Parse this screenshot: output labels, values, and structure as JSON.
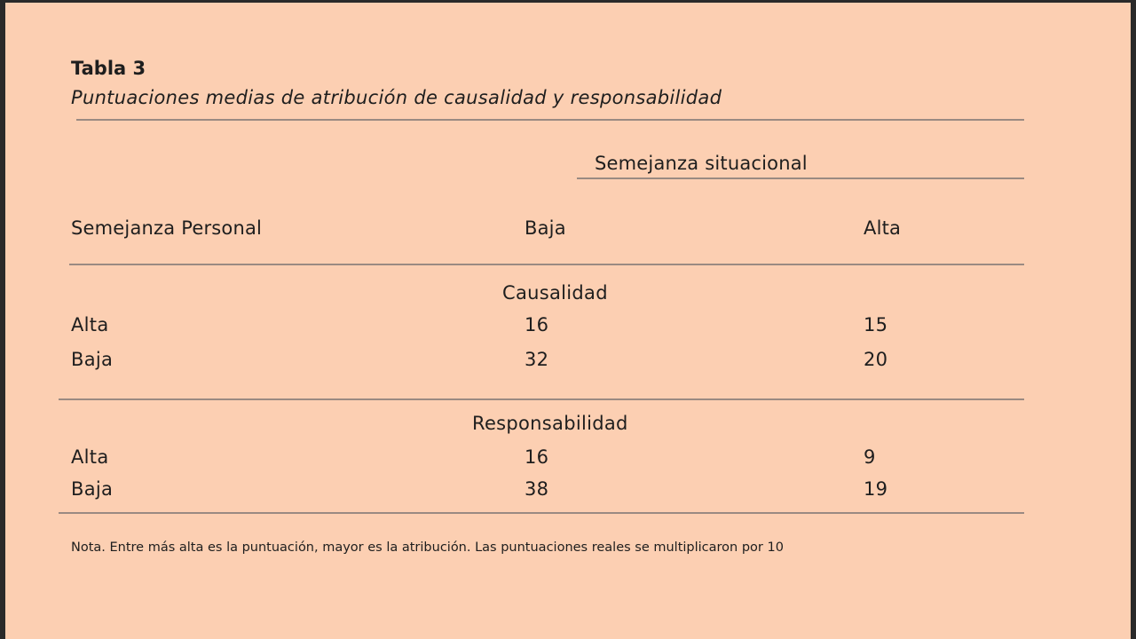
{
  "table": {
    "number": "Tabla 3",
    "caption": "Puntuaciones medias de atribución de causalidad y responsabilidad",
    "spanner": "Semejanza situacional",
    "row_header": "Semejanza Personal",
    "col_headers": [
      "Baja",
      "Alta"
    ],
    "sections": [
      {
        "label": "Causalidad",
        "rows": [
          {
            "label": "Alta",
            "values": [
              "16",
              "15"
            ]
          },
          {
            "label": "Baja",
            "values": [
              "32",
              "20"
            ]
          }
        ]
      },
      {
        "label": "Responsabilidad",
        "rows": [
          {
            "label": "Alta",
            "values": [
              "16",
              "9"
            ]
          },
          {
            "label": "Baja",
            "values": [
              "38",
              "19"
            ]
          }
        ]
      }
    ],
    "note": "Nota. Entre más alta es la puntuación, mayor es la atribución. Las puntuaciones reales se multiplicaron por 10"
  },
  "colors": {
    "background": "#fccfb2",
    "text": "#1e1e1e",
    "rule": "#9a8a82"
  }
}
